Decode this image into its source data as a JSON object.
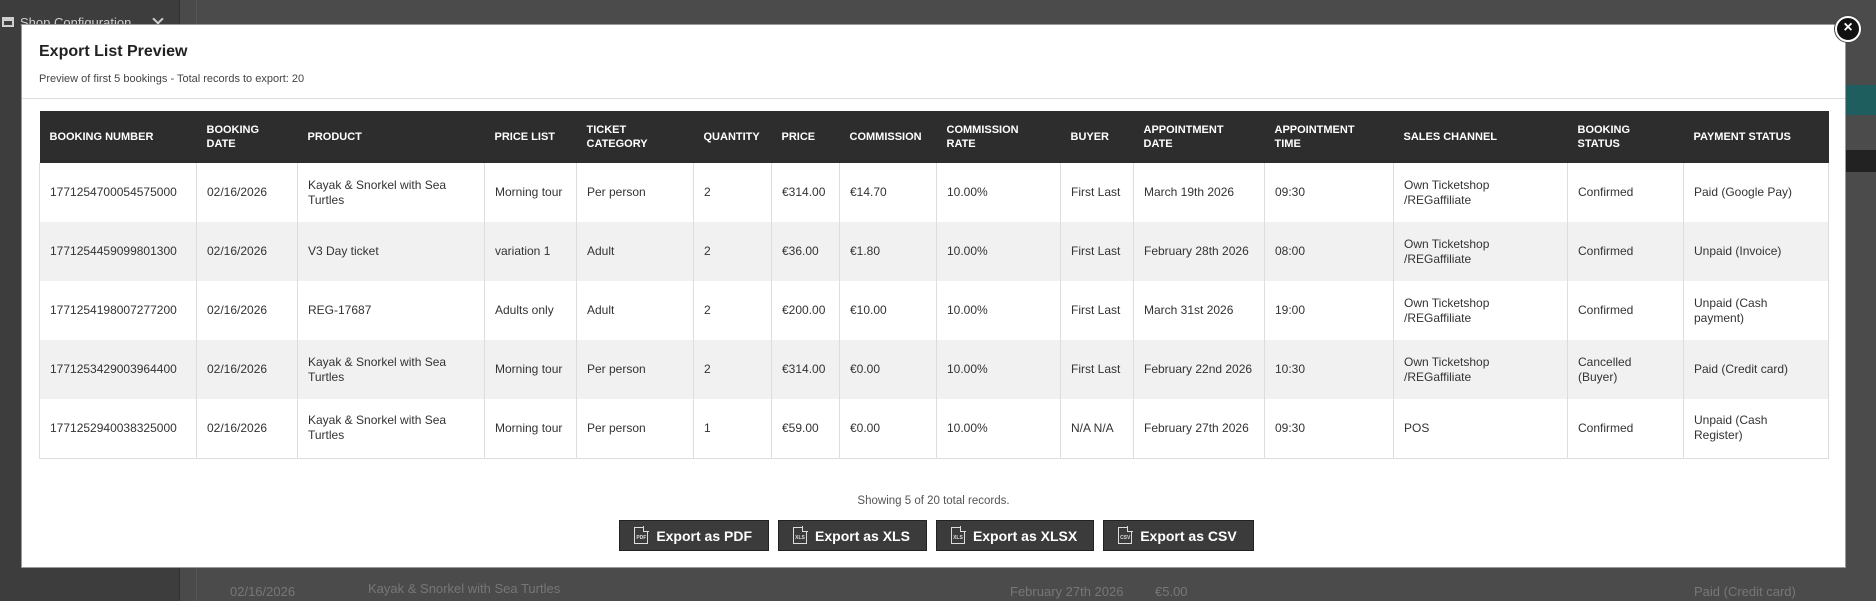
{
  "background": {
    "sidebar_label": "Shop Configuration",
    "row": {
      "date": "02/16/2026",
      "product": "Kayak & Snorkel with Sea Turtles",
      "appointment": "February 27th 2026",
      "price": "€5.00",
      "payment": "Paid (Credit card)"
    }
  },
  "modal": {
    "title": "Export List Preview",
    "subtitle": "Preview of first 5 bookings - Total records to export: 20",
    "close_label": "×"
  },
  "table": {
    "headers": [
      "BOOKING NUMBER",
      "BOOKING DATE",
      "PRODUCT",
      "PRICE LIST",
      "TICKET CATEGORY",
      "QUANTITY",
      "PRICE",
      "COMMISSION",
      "COMMISSION RATE",
      "BUYER",
      "APPOINTMENT DATE",
      "APPOINTMENT TIME",
      "SALES CHANNEL",
      "BOOKING STATUS",
      "PAYMENT STATUS"
    ],
    "rows": [
      [
        "1771254700054575000",
        "02/16/2026",
        "Kayak & Snorkel with Sea Turtles",
        "Morning tour",
        "Per person",
        "2",
        "€314.00",
        "€14.70",
        "10.00%",
        "First Last",
        "March 19th 2026",
        "09:30",
        "Own Ticketshop /REGaffiliate",
        "Confirmed",
        "Paid (Google Pay)"
      ],
      [
        "1771254459099801300",
        "02/16/2026",
        "V3 Day ticket",
        "variation 1",
        "Adult",
        "2",
        "€36.00",
        "€1.80",
        "10.00%",
        "First Last",
        "February 28th 2026",
        "08:00",
        "Own Ticketshop /REGaffiliate",
        "Confirmed",
        "Unpaid (Invoice)"
      ],
      [
        "1771254198007277200",
        "02/16/2026",
        "REG-17687",
        "Adults only",
        "Adult",
        "2",
        "€200.00",
        "€10.00",
        "10.00%",
        "First Last",
        "March 31st 2026",
        "19:00",
        "Own Ticketshop /REGaffiliate",
        "Confirmed",
        "Unpaid (Cash payment)"
      ],
      [
        "1771253429003964400",
        "02/16/2026",
        "Kayak & Snorkel with Sea Turtles",
        "Morning tour",
        "Per person",
        "2",
        "€314.00",
        "€0.00",
        "10.00%",
        "First Last",
        "February 22nd 2026",
        "10:30",
        "Own Ticketshop /REGaffiliate",
        "Cancelled (Buyer)",
        "Paid (Credit card)"
      ],
      [
        "1771252940038325000",
        "02/16/2026",
        "Kayak & Snorkel with Sea Turtles",
        "Morning tour",
        "Per person",
        "1",
        "€59.00",
        "€0.00",
        "10.00%",
        "N/A N/A",
        "February 27th 2026",
        "09:30",
        "POS",
        "Confirmed",
        "Unpaid (Cash Register)"
      ]
    ]
  },
  "footer": {
    "info": "Showing 5 of 20 total records.",
    "buttons": [
      {
        "label": "Export as PDF",
        "icon": "pdf-file-icon",
        "icon_text": "PDF"
      },
      {
        "label": "Export as XLS",
        "icon": "xls-file-icon",
        "icon_text": "XLS"
      },
      {
        "label": "Export as XLSX",
        "icon": "xlsx-file-icon",
        "icon_text": "XLS"
      },
      {
        "label": "Export as CSV",
        "icon": "csv-file-icon",
        "icon_text": "CSV"
      }
    ]
  }
}
